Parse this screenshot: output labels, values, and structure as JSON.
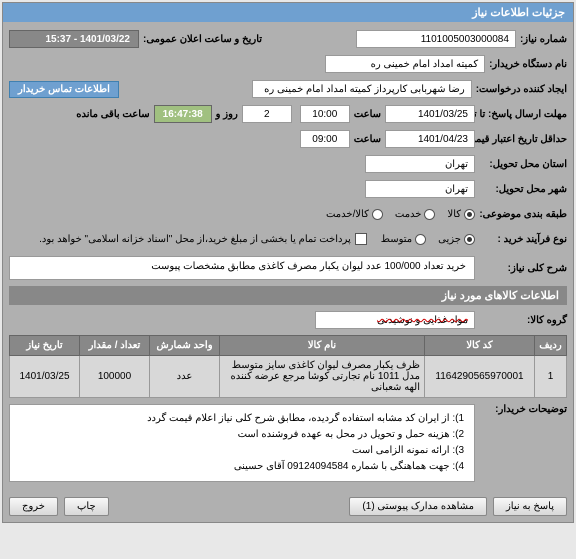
{
  "header": {
    "title": "جزئیات اطلاعات نیاز"
  },
  "fields": {
    "need_number_label": "شماره نیاز:",
    "need_number": "1101005003000084",
    "datetime_label": "تاریخ و ساعت اعلان عمومی:",
    "datetime": "1401/03/22 - 15:37",
    "buyer_name_label": "نام دستگاه خریدار:",
    "buyer_name": "کمیته امداد امام خمینی ره",
    "requester_label": "ایجاد کننده درخواست:",
    "requester": "رضا شهربابی کارپرداز کمیته امداد امام خمینی ره",
    "contact_header": "اطلاعات تماس خریدار",
    "deadline_label": "مهلت ارسال پاسخ: تا تاریخ:",
    "deadline_date": "1401/03/25",
    "time_label": "ساعت",
    "deadline_time": "10:00",
    "days_remaining": "2",
    "days_label": "روز و",
    "countdown": "16:47:38",
    "remaining_label": "ساعت باقی مانده",
    "validity_label": "حداقل تاریخ اعتبار قیمت: تا تاریخ:",
    "validity_date": "1401/04/23",
    "validity_time": "09:00",
    "delivery_city_label": "استان محل تحویل:",
    "delivery_city": "تهران",
    "delivery_town_label": "شهر محل تحویل:",
    "delivery_town": "تهران",
    "category_label": "طبقه بندی موضوعی:",
    "category_goods": "کالا",
    "category_service": "خدمت",
    "category_both": "کالا/خدمت",
    "process_label": "نوع فرآیند خرید :",
    "process_partial": "جزیی",
    "process_medium": "متوسط",
    "payment_note": "پرداخت تمام یا بخشی از مبلغ خرید،از محل \"اسناد خزانه اسلامی\" خواهد بود.",
    "general_desc_label": "شرح کلی نیاز:",
    "general_desc": "خرید تعداد 100/000 عدد لیوان یکبار مصرف کاغذی مطابق مشخصات پیوست"
  },
  "items_section": {
    "title": "اطلاعات کالاهای مورد نیاز",
    "group_label": "گروه کالا:",
    "group_value": "مواد غذایی و نوشیدنی",
    "columns": {
      "row": "ردیف",
      "code": "کد کالا",
      "name": "نام کالا",
      "unit": "واحد شمارش",
      "qty": "تعداد / مقدار",
      "date": "تاریخ نیاز"
    },
    "rows": [
      {
        "row": "1",
        "code": "1164290565970001",
        "name": "ظرف یکبار مصرف لیوان کاغذی سایز متوسط مدل 1011 نام تجارتی کوشا مرجع عرضه کننده الهه شعبانی",
        "unit": "عدد",
        "qty": "100000",
        "date": "1401/03/25"
      }
    ]
  },
  "buyer_notes": {
    "label": "توضیحات خریدار:",
    "lines": [
      "1): از ایران کد مشابه استفاده گردیده، مطابق شرح کلی نیاز اعلام قیمت گردد",
      "2): هزینه حمل و تحویل در محل به عهده فروشنده است",
      "3): ارائه نمونه الزامی است",
      "4): جهت هماهنگی با شماره 09124094584 آقای حسینی"
    ]
  },
  "buttons": {
    "reply": "پاسخ به نیاز",
    "attachments": "مشاهده مدارک پیوستی (1)",
    "print": "چاپ",
    "exit": "خروج"
  }
}
